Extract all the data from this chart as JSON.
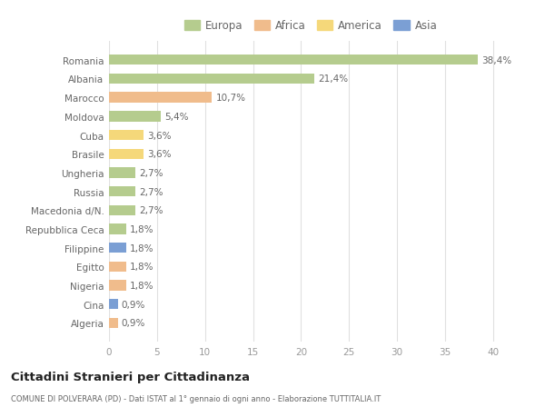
{
  "categories": [
    "Algeria",
    "Cina",
    "Nigeria",
    "Egitto",
    "Filippine",
    "Repubblica Ceca",
    "Macedonia d/N.",
    "Russia",
    "Ungheria",
    "Brasile",
    "Cuba",
    "Moldova",
    "Marocco",
    "Albania",
    "Romania"
  ],
  "values": [
    0.9,
    0.9,
    1.8,
    1.8,
    1.8,
    1.8,
    2.7,
    2.7,
    2.7,
    3.6,
    3.6,
    5.4,
    10.7,
    21.4,
    38.4
  ],
  "labels": [
    "0,9%",
    "0,9%",
    "1,8%",
    "1,8%",
    "1,8%",
    "1,8%",
    "2,7%",
    "2,7%",
    "2,7%",
    "3,6%",
    "3,6%",
    "5,4%",
    "10,7%",
    "21,4%",
    "38,4%"
  ],
  "colors": [
    "#f0bc8c",
    "#7b9fd4",
    "#f0bc8c",
    "#f0bc8c",
    "#7b9fd4",
    "#b5cc8e",
    "#b5cc8e",
    "#b5cc8e",
    "#b5cc8e",
    "#f5d87a",
    "#f5d87a",
    "#b5cc8e",
    "#f0bc8c",
    "#b5cc8e",
    "#b5cc8e"
  ],
  "legend_labels": [
    "Europa",
    "Africa",
    "America",
    "Asia"
  ],
  "legend_colors": [
    "#b5cc8e",
    "#f0bc8c",
    "#f5d87a",
    "#7b9fd4"
  ],
  "title": "Cittadini Stranieri per Cittadinanza",
  "subtitle": "COMUNE DI POLVERARA (PD) - Dati ISTAT al 1° gennaio di ogni anno - Elaborazione TUTTITALIA.IT",
  "xlim": [
    0,
    42
  ],
  "xticks": [
    0,
    5,
    10,
    15,
    20,
    25,
    30,
    35,
    40
  ],
  "background_color": "#ffffff",
  "grid_color": "#e0e0e0",
  "bar_height": 0.55
}
